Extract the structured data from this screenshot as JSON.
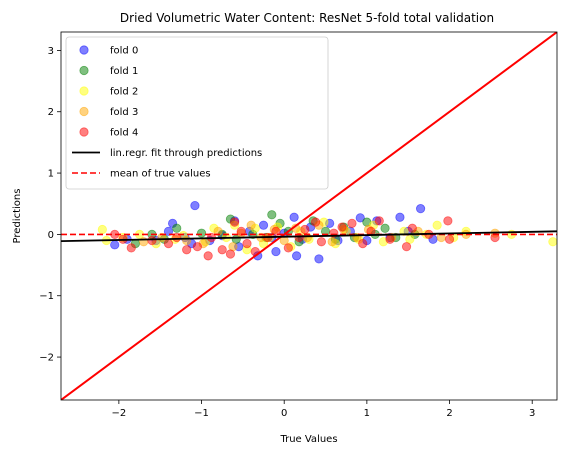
{
  "chart_data": {
    "type": "scatter",
    "title": "Dried Volumetric Water Content: ResNet 5-fold total validation",
    "xlabel": "True Values",
    "ylabel": "Predictions",
    "xlim": [
      -2.7,
      3.3
    ],
    "ylim": [
      -2.7,
      3.3
    ],
    "xticks": [
      -2,
      -1,
      0,
      1,
      2,
      3
    ],
    "yticks": [
      -2,
      -1,
      0,
      1,
      2,
      3
    ],
    "grid": false,
    "legend_position": "top-left",
    "series": [
      {
        "name": "fold 0",
        "color": "#0000ff",
        "points": [
          [
            -2.05,
            -0.17
          ],
          [
            -1.9,
            -0.08
          ],
          [
            -1.55,
            -0.1
          ],
          [
            -1.4,
            0.05
          ],
          [
            -1.35,
            0.18
          ],
          [
            -1.2,
            -0.05
          ],
          [
            -1.12,
            -0.15
          ],
          [
            -1.08,
            0.47
          ],
          [
            -0.9,
            -0.1
          ],
          [
            -0.75,
            -0.02
          ],
          [
            -0.6,
            0.22
          ],
          [
            -0.55,
            -0.2
          ],
          [
            -0.42,
            0.05
          ],
          [
            -0.32,
            -0.35
          ],
          [
            -0.25,
            0.15
          ],
          [
            -0.15,
            -0.05
          ],
          [
            -0.1,
            -0.28
          ],
          [
            0.0,
            0.02
          ],
          [
            0.12,
            0.28
          ],
          [
            0.15,
            -0.35
          ],
          [
            0.22,
            -0.08
          ],
          [
            0.32,
            0.12
          ],
          [
            0.42,
            -0.4
          ],
          [
            0.55,
            0.18
          ],
          [
            0.65,
            -0.1
          ],
          [
            0.8,
            0.05
          ],
          [
            0.92,
            0.27
          ],
          [
            1.0,
            -0.1
          ],
          [
            1.12,
            0.22
          ],
          [
            1.28,
            -0.05
          ],
          [
            1.4,
            0.28
          ],
          [
            1.5,
            0.05
          ],
          [
            1.65,
            0.42
          ],
          [
            1.8,
            -0.08
          ]
        ]
      },
      {
        "name": "fold 1",
        "color": "#008000",
        "points": [
          [
            -1.8,
            -0.15
          ],
          [
            -1.6,
            0.0
          ],
          [
            -1.45,
            -0.08
          ],
          [
            -1.3,
            0.1
          ],
          [
            -1.0,
            0.02
          ],
          [
            -0.75,
            0.0
          ],
          [
            -0.65,
            0.25
          ],
          [
            -0.58,
            -0.08
          ],
          [
            -0.38,
            0.0
          ],
          [
            -0.22,
            -0.05
          ],
          [
            -0.15,
            0.32
          ],
          [
            -0.05,
            0.18
          ],
          [
            0.05,
            0.05
          ],
          [
            0.18,
            -0.12
          ],
          [
            0.35,
            0.22
          ],
          [
            0.5,
            0.05
          ],
          [
            0.62,
            -0.08
          ],
          [
            0.72,
            0.12
          ],
          [
            0.85,
            -0.05
          ],
          [
            1.0,
            0.2
          ],
          [
            1.1,
            0.0
          ],
          [
            1.22,
            0.1
          ],
          [
            1.35,
            -0.05
          ],
          [
            1.58,
            0.0
          ]
        ]
      },
      {
        "name": "fold 2",
        "color": "#ffff00",
        "points": [
          [
            -2.2,
            0.08
          ],
          [
            -2.15,
            -0.1
          ],
          [
            -1.95,
            -0.05
          ],
          [
            -1.75,
            0.0
          ],
          [
            -1.55,
            -0.15
          ],
          [
            -1.32,
            -0.08
          ],
          [
            -1.22,
            -0.02
          ],
          [
            -0.95,
            -0.12
          ],
          [
            -0.85,
            0.1
          ],
          [
            -0.7,
            -0.05
          ],
          [
            -0.6,
            0.15
          ],
          [
            -0.45,
            -0.25
          ],
          [
            -0.35,
            0.1
          ],
          [
            -0.25,
            -0.15
          ],
          [
            -0.18,
            -0.05
          ],
          [
            -0.08,
            0.12
          ],
          [
            0.08,
            -0.2
          ],
          [
            0.2,
            0.05
          ],
          [
            0.3,
            -0.08
          ],
          [
            0.48,
            0.2
          ],
          [
            0.62,
            -0.15
          ],
          [
            0.75,
            0.05
          ],
          [
            0.9,
            -0.08
          ],
          [
            1.08,
            0.15
          ],
          [
            1.2,
            -0.12
          ],
          [
            1.45,
            0.05
          ],
          [
            1.52,
            -0.08
          ],
          [
            1.72,
            0.0
          ],
          [
            1.85,
            0.15
          ],
          [
            2.05,
            -0.05
          ],
          [
            2.2,
            0.05
          ],
          [
            2.75,
            0.0
          ],
          [
            3.25,
            -0.12
          ]
        ]
      },
      {
        "name": "fold 3",
        "color": "#ffa500",
        "points": [
          [
            -1.7,
            -0.12
          ],
          [
            -1.48,
            -0.05
          ],
          [
            -1.18,
            -0.1
          ],
          [
            -0.98,
            -0.15
          ],
          [
            -0.8,
            0.05
          ],
          [
            -0.62,
            -0.2
          ],
          [
            -0.52,
            0.02
          ],
          [
            -0.4,
            0.15
          ],
          [
            -0.28,
            -0.05
          ],
          [
            -0.12,
            0.08
          ],
          [
            0.0,
            -0.1
          ],
          [
            0.14,
            0.1
          ],
          [
            0.28,
            -0.05
          ],
          [
            0.42,
            0.15
          ],
          [
            0.58,
            -0.12
          ],
          [
            0.72,
            0.08
          ],
          [
            0.88,
            -0.05
          ],
          [
            1.02,
            0.08
          ],
          [
            1.3,
            -0.05
          ],
          [
            1.62,
            0.05
          ],
          [
            1.9,
            -0.05
          ],
          [
            2.2,
            0.0
          ],
          [
            2.55,
            0.02
          ]
        ]
      },
      {
        "name": "fold 4",
        "color": "#ff0000",
        "points": [
          [
            -2.05,
            0.0
          ],
          [
            -1.95,
            -0.08
          ],
          [
            -1.85,
            -0.22
          ],
          [
            -1.6,
            -0.1
          ],
          [
            -1.4,
            -0.15
          ],
          [
            -1.3,
            -0.05
          ],
          [
            -1.18,
            -0.25
          ],
          [
            -1.05,
            -0.2
          ],
          [
            -0.92,
            -0.35
          ],
          [
            -0.88,
            -0.05
          ],
          [
            -0.75,
            -0.25
          ],
          [
            -0.65,
            -0.32
          ],
          [
            -0.6,
            0.2
          ],
          [
            -0.52,
            0.05
          ],
          [
            -0.45,
            -0.15
          ],
          [
            -0.35,
            -0.28
          ],
          [
            -0.2,
            -0.05
          ],
          [
            -0.1,
            0.05
          ],
          [
            0.05,
            -0.22
          ],
          [
            0.18,
            -0.05
          ],
          [
            0.25,
            0.08
          ],
          [
            0.38,
            0.2
          ],
          [
            0.45,
            -0.12
          ],
          [
            0.6,
            0.02
          ],
          [
            0.7,
            0.12
          ],
          [
            0.82,
            0.18
          ],
          [
            0.95,
            -0.15
          ],
          [
            1.05,
            0.05
          ],
          [
            1.15,
            0.22
          ],
          [
            1.28,
            -0.08
          ],
          [
            1.48,
            -0.2
          ],
          [
            1.55,
            0.1
          ],
          [
            1.75,
            0.0
          ],
          [
            1.98,
            0.22
          ],
          [
            2.0,
            -0.08
          ],
          [
            2.55,
            -0.05
          ]
        ]
      }
    ],
    "regression": {
      "name": "lin.regr. fit through predictions",
      "color": "#000000",
      "x": [
        -2.7,
        3.3
      ],
      "y": [
        -0.11,
        0.05
      ]
    },
    "mean_line": {
      "name": "mean of true values",
      "color": "#ff0000",
      "y": 0.0
    },
    "identity": {
      "color": "#ff0000",
      "x": [
        -2.7,
        3.3
      ],
      "y": [
        -2.7,
        3.3
      ]
    }
  }
}
